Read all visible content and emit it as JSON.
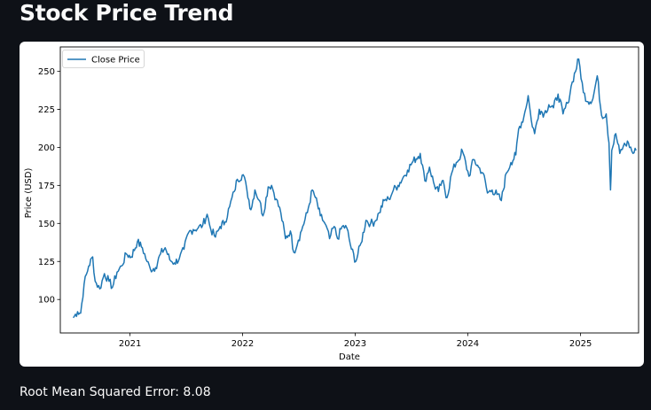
{
  "header": {
    "title": "Stock Price Trend"
  },
  "metric": {
    "text": "Root Mean Squared Error: 8.08"
  },
  "colors": {
    "line": "#1f77b4",
    "page_background": "#0e1117",
    "card_background": "#ffffff"
  },
  "chart_data": {
    "type": "line",
    "title": "",
    "xlabel": "Date",
    "ylabel": "Price (USD)",
    "xlim": [
      "2020-05-20",
      "2025-07-08"
    ],
    "ylim": [
      78,
      266
    ],
    "x_ticks": [
      "2021",
      "2022",
      "2023",
      "2024",
      "2025"
    ],
    "y_ticks": [
      100,
      125,
      150,
      175,
      200,
      225,
      250
    ],
    "grid": false,
    "legend": "upper-left",
    "series": [
      {
        "name": "Close Price",
        "points": [
          [
            "2020-07-01",
            88
          ],
          [
            "2020-07-15",
            92
          ],
          [
            "2020-07-25",
            91
          ],
          [
            "2020-08-05",
            110
          ],
          [
            "2020-08-20",
            122
          ],
          [
            "2020-09-02",
            128
          ],
          [
            "2020-09-10",
            112
          ],
          [
            "2020-09-25",
            107
          ],
          [
            "2020-10-10",
            117
          ],
          [
            "2020-10-25",
            112
          ],
          [
            "2020-11-05",
            108
          ],
          [
            "2020-11-20",
            118
          ],
          [
            "2020-12-05",
            122
          ],
          [
            "2020-12-20",
            130
          ],
          [
            "2021-01-05",
            128
          ],
          [
            "2021-01-25",
            138
          ],
          [
            "2021-02-10",
            134
          ],
          [
            "2021-02-25",
            125
          ],
          [
            "2021-03-08",
            120
          ],
          [
            "2021-03-25",
            121
          ],
          [
            "2021-04-10",
            130
          ],
          [
            "2021-04-25",
            134
          ],
          [
            "2021-05-10",
            126
          ],
          [
            "2021-05-25",
            124
          ],
          [
            "2021-06-10",
            127
          ],
          [
            "2021-06-25",
            133
          ],
          [
            "2021-07-10",
            144
          ],
          [
            "2021-07-25",
            146
          ],
          [
            "2021-08-10",
            147
          ],
          [
            "2021-08-25",
            149
          ],
          [
            "2021-09-08",
            156
          ],
          [
            "2021-09-20",
            146
          ],
          [
            "2021-10-05",
            141
          ],
          [
            "2021-10-20",
            148
          ],
          [
            "2021-11-05",
            151
          ],
          [
            "2021-11-20",
            161
          ],
          [
            "2021-12-05",
            171
          ],
          [
            "2021-12-15",
            179
          ],
          [
            "2022-01-03",
            182
          ],
          [
            "2022-01-15",
            172
          ],
          [
            "2022-01-28",
            159
          ],
          [
            "2022-02-10",
            172
          ],
          [
            "2022-02-25",
            165
          ],
          [
            "2022-03-08",
            155
          ],
          [
            "2022-03-25",
            174
          ],
          [
            "2022-04-05",
            175
          ],
          [
            "2022-04-20",
            166
          ],
          [
            "2022-05-05",
            157
          ],
          [
            "2022-05-20",
            140
          ],
          [
            "2022-06-05",
            145
          ],
          [
            "2022-06-16",
            131
          ],
          [
            "2022-07-01",
            139
          ],
          [
            "2022-07-15",
            148
          ],
          [
            "2022-07-30",
            157
          ],
          [
            "2022-08-15",
            172
          ],
          [
            "2022-08-25",
            167
          ],
          [
            "2022-09-10",
            155
          ],
          [
            "2022-09-25",
            150
          ],
          [
            "2022-10-10",
            140
          ],
          [
            "2022-10-25",
            148
          ],
          [
            "2022-11-05",
            140
          ],
          [
            "2022-11-20",
            148
          ],
          [
            "2022-12-05",
            147
          ],
          [
            "2022-12-20",
            133
          ],
          [
            "2023-01-03",
            125
          ],
          [
            "2023-01-20",
            137
          ],
          [
            "2023-02-05",
            152
          ],
          [
            "2023-02-20",
            150
          ],
          [
            "2023-03-05",
            151
          ],
          [
            "2023-03-20",
            157
          ],
          [
            "2023-04-05",
            165
          ],
          [
            "2023-04-20",
            166
          ],
          [
            "2023-05-05",
            172
          ],
          [
            "2023-05-20",
            175
          ],
          [
            "2023-06-05",
            180
          ],
          [
            "2023-06-20",
            185
          ],
          [
            "2023-07-05",
            190
          ],
          [
            "2023-07-31",
            196
          ],
          [
            "2023-08-15",
            178
          ],
          [
            "2023-08-30",
            187
          ],
          [
            "2023-09-15",
            175
          ],
          [
            "2023-09-28",
            171
          ],
          [
            "2023-10-10",
            178
          ],
          [
            "2023-10-26",
            167
          ],
          [
            "2023-11-10",
            183
          ],
          [
            "2023-11-25",
            190
          ],
          [
            "2023-12-10",
            195
          ],
          [
            "2023-12-14",
            198
          ],
          [
            "2024-01-05",
            181
          ],
          [
            "2024-01-20",
            192
          ],
          [
            "2024-02-05",
            187
          ],
          [
            "2024-02-20",
            183
          ],
          [
            "2024-03-05",
            170
          ],
          [
            "2024-03-20",
            172
          ],
          [
            "2024-04-05",
            169
          ],
          [
            "2024-04-19",
            165
          ],
          [
            "2024-05-05",
            183
          ],
          [
            "2024-05-20",
            190
          ],
          [
            "2024-06-05",
            195
          ],
          [
            "2024-06-14",
            212
          ],
          [
            "2024-07-01",
            220
          ],
          [
            "2024-07-15",
            234
          ],
          [
            "2024-07-25",
            218
          ],
          [
            "2024-08-05",
            209
          ],
          [
            "2024-08-20",
            225
          ],
          [
            "2024-09-05",
            222
          ],
          [
            "2024-09-20",
            228
          ],
          [
            "2024-10-05",
            226
          ],
          [
            "2024-10-20",
            235
          ],
          [
            "2024-11-05",
            222
          ],
          [
            "2024-11-20",
            229
          ],
          [
            "2024-12-05",
            243
          ],
          [
            "2024-12-26",
            258
          ],
          [
            "2025-01-10",
            236
          ],
          [
            "2025-01-25",
            230
          ],
          [
            "2025-02-10",
            232
          ],
          [
            "2025-02-24",
            247
          ],
          [
            "2025-03-10",
            221
          ],
          [
            "2025-03-25",
            222
          ],
          [
            "2025-04-03",
            203
          ],
          [
            "2025-04-08",
            172
          ],
          [
            "2025-04-12",
            198
          ],
          [
            "2025-04-25",
            209
          ],
          [
            "2025-05-08",
            196
          ],
          [
            "2025-05-20",
            201
          ],
          [
            "2025-06-05",
            203
          ],
          [
            "2025-06-20",
            196
          ],
          [
            "2025-06-30",
            198
          ]
        ]
      }
    ]
  }
}
